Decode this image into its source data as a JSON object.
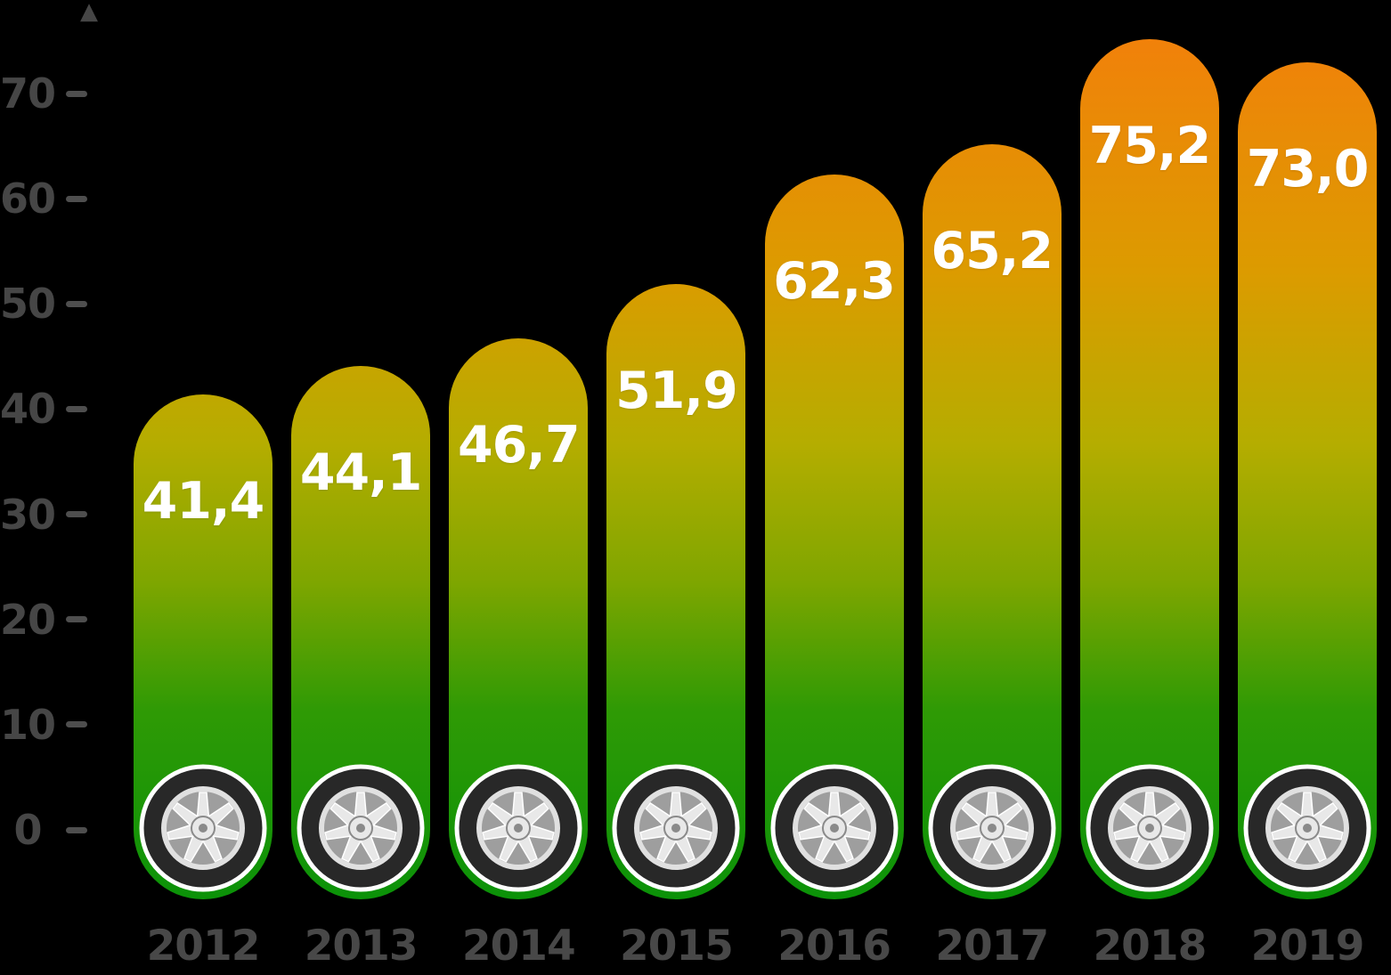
{
  "chart_data": {
    "type": "bar",
    "categories": [
      "2012",
      "2013",
      "2014",
      "2015",
      "2016",
      "2017",
      "2018",
      "2019"
    ],
    "values": [
      41.4,
      44.1,
      46.7,
      51.9,
      62.3,
      65.2,
      75.2,
      73.0
    ],
    "value_labels": [
      "41,4",
      "44,1",
      "46,7",
      "51,9",
      "62,3",
      "65,2",
      "75,2",
      "73,0"
    ],
    "title": "",
    "xlabel": "",
    "ylabel": "",
    "ylim": [
      0,
      78
    ],
    "yticks": [
      0,
      10,
      20,
      30,
      40,
      50,
      60,
      70
    ],
    "grid": false,
    "legend": "none",
    "bar_style": "rounded-pill-with-wheel-icon-at-base",
    "decimal_separator": ","
  },
  "icons": {
    "axis_arrow": "▲",
    "bar_base": "tire-wheel-icon"
  },
  "colors": {
    "background": "#000000",
    "axis_text": "#464646",
    "tick_dash": "#4E4E4E",
    "year_text": "#484848",
    "value_text": "#FFFFFF",
    "bar_gradient_stops": [
      "#F1810A",
      "#DC9B00",
      "#B5AD00",
      "#7FA600",
      "#2F9A05",
      "#0B9208"
    ],
    "bar_gradient_positions": [
      0,
      27,
      47,
      63,
      78,
      100
    ],
    "tire": "#282828",
    "tire_ring": "#FFFFFF",
    "rim_window": "#9E9E9E",
    "rim_spoke": "#E8E8E8",
    "hub_ring": "#8A8A8A"
  }
}
